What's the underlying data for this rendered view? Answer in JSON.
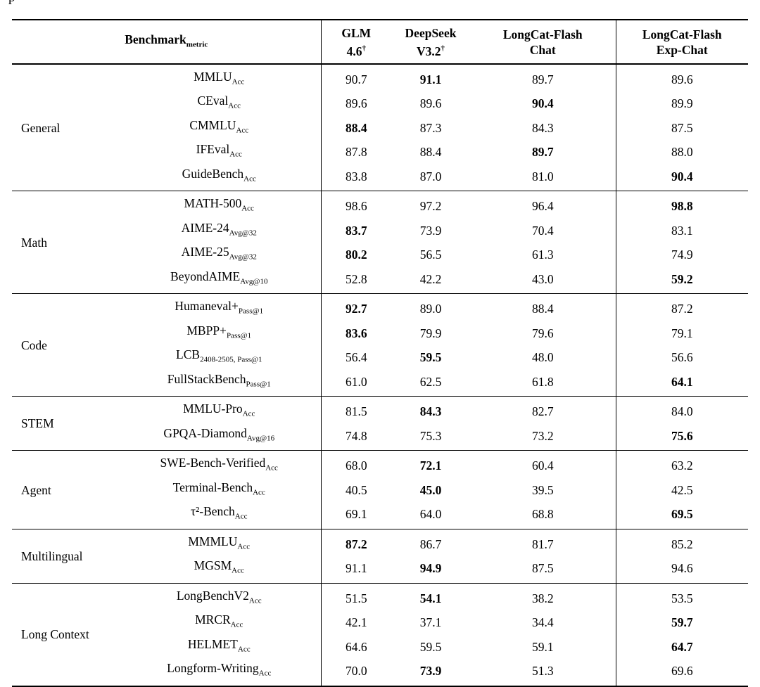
{
  "caption_fragment": "p",
  "table": {
    "header": {
      "benchmark_label": "Benchmark",
      "benchmark_sub": "metric",
      "columns": [
        {
          "line1": "GLM",
          "line2": "4.6",
          "sup": "†"
        },
        {
          "line1": "DeepSeek",
          "line2": "V3.2",
          "sup": "†"
        },
        {
          "line1": "LongCat-Flash",
          "line2": "Chat",
          "sup": ""
        },
        {
          "line1": "LongCat-Flash",
          "line2": "Exp-Chat",
          "sup": ""
        }
      ]
    },
    "groups": [
      {
        "name": "General",
        "rows": [
          {
            "name": "MMLU",
            "sub": "Acc",
            "values": [
              "90.7",
              "91.1",
              "89.7",
              "89.6"
            ],
            "bold": 1
          },
          {
            "name": "CEval",
            "sub": "Acc",
            "values": [
              "89.6",
              "89.6",
              "90.4",
              "89.9"
            ],
            "bold": 2
          },
          {
            "name": "CMMLU",
            "sub": "Acc",
            "values": [
              "88.4",
              "87.3",
              "84.3",
              "87.5"
            ],
            "bold": 0
          },
          {
            "name": "IFEval",
            "sub": "Acc",
            "values": [
              "87.8",
              "88.4",
              "89.7",
              "88.0"
            ],
            "bold": 2
          },
          {
            "name": "GuideBench",
            "sub": "Acc",
            "values": [
              "83.8",
              "87.0",
              "81.0",
              "90.4"
            ],
            "bold": 3
          }
        ]
      },
      {
        "name": "Math",
        "rows": [
          {
            "name": "MATH-500",
            "sub": "Acc",
            "values": [
              "98.6",
              "97.2",
              "96.4",
              "98.8"
            ],
            "bold": 3
          },
          {
            "name": "AIME-24",
            "sub": "Avg@32",
            "values": [
              "83.7",
              "73.9",
              "70.4",
              "83.1"
            ],
            "bold": 0
          },
          {
            "name": "AIME-25",
            "sub": "Avg@32",
            "values": [
              "80.2",
              "56.5",
              "61.3",
              "74.9"
            ],
            "bold": 0
          },
          {
            "name": "BeyondAIME",
            "sub": "Avg@10",
            "values": [
              "52.8",
              "42.2",
              "43.0",
              "59.2"
            ],
            "bold": 3
          }
        ]
      },
      {
        "name": "Code",
        "rows": [
          {
            "name": "Humaneval+",
            "sub": "Pass@1",
            "values": [
              "92.7",
              "89.0",
              "88.4",
              "87.2"
            ],
            "bold": 0
          },
          {
            "name": "MBPP+",
            "sub": "Pass@1",
            "values": [
              "83.6",
              "79.9",
              "79.6",
              "79.1"
            ],
            "bold": 0
          },
          {
            "name": "LCB",
            "sub": "2408-2505, Pass@1",
            "values": [
              "56.4",
              "59.5",
              "48.0",
              "56.6"
            ],
            "bold": 1
          },
          {
            "name": "FullStackBench",
            "sub": "Pass@1",
            "values": [
              "61.0",
              "62.5",
              "61.8",
              "64.1"
            ],
            "bold": 3
          }
        ]
      },
      {
        "name": "STEM",
        "rows": [
          {
            "name": "MMLU-Pro",
            "sub": "Acc",
            "values": [
              "81.5",
              "84.3",
              "82.7",
              "84.0"
            ],
            "bold": 1
          },
          {
            "name": "GPQA-Diamond",
            "sub": "Avg@16",
            "values": [
              "74.8",
              "75.3",
              "73.2",
              "75.6"
            ],
            "bold": 3
          }
        ]
      },
      {
        "name": "Agent",
        "rows": [
          {
            "name": "SWE-Bench-Verified",
            "sub": "Acc",
            "values": [
              "68.0",
              "72.1",
              "60.4",
              "63.2"
            ],
            "bold": 1
          },
          {
            "name": "Terminal-Bench",
            "sub": "Acc",
            "values": [
              "40.5",
              "45.0",
              "39.5",
              "42.5"
            ],
            "bold": 1
          },
          {
            "name": "τ²-Bench",
            "sub": "Acc",
            "values": [
              "69.1",
              "64.0",
              "68.8",
              "69.5"
            ],
            "bold": 3
          }
        ]
      },
      {
        "name": "Multilingual",
        "rows": [
          {
            "name": "MMMLU",
            "sub": "Acc",
            "values": [
              "87.2",
              "86.7",
              "81.7",
              "85.2"
            ],
            "bold": 0
          },
          {
            "name": "MGSM",
            "sub": "Acc",
            "values": [
              "91.1",
              "94.9",
              "87.5",
              "94.6"
            ],
            "bold": 1
          }
        ]
      },
      {
        "name": "Long Context",
        "rows": [
          {
            "name": "LongBenchV2",
            "sub": "Acc",
            "values": [
              "51.5",
              "54.1",
              "38.2",
              "53.5"
            ],
            "bold": 1
          },
          {
            "name": "MRCR",
            "sub": "Acc",
            "values": [
              "42.1",
              "37.1",
              "34.4",
              "59.7"
            ],
            "bold": 3
          },
          {
            "name": "HELMET",
            "sub": "Acc",
            "values": [
              "64.6",
              "59.5",
              "59.1",
              "64.7"
            ],
            "bold": 3
          },
          {
            "name": "Longform-Writing",
            "sub": "Acc",
            "values": [
              "70.0",
              "73.9",
              "51.3",
              "69.6"
            ],
            "bold": 1
          }
        ]
      }
    ]
  }
}
